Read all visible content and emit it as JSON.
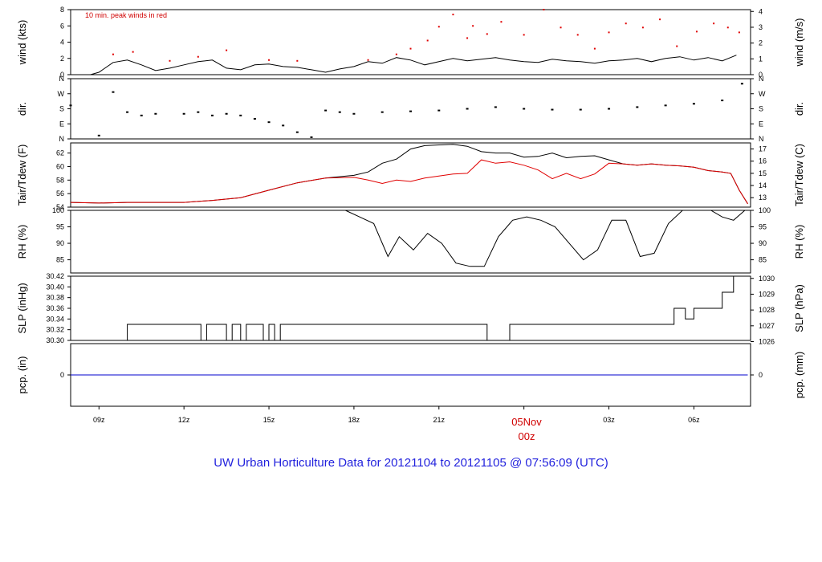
{
  "footer_title": "UW Urban Horticulture Data for 20121104  to  20121105 @ 07:56:09  (UTC)",
  "date_marker": {
    "date": "05Nov",
    "time": "00z",
    "color": "#d00000"
  },
  "x_ticks": [
    "09z",
    "12z",
    "15z",
    "18z",
    "21z",
    "00z",
    "03z",
    "06z"
  ],
  "colors": {
    "line": "#000000",
    "dewpoint": "#e00000",
    "gusts": "#e00000",
    "precip": "#0000cc",
    "footer": "#2222dd"
  },
  "chart_data": [
    {
      "type": "line",
      "name": "wind",
      "ylabel_left": "wind (kts)",
      "ylabel_right": "wind (m/s)",
      "annotation": "10 min. peak winds in red",
      "ylim": [
        0,
        8
      ],
      "yticks_left": [
        "0",
        "2",
        "4",
        "6",
        "8"
      ],
      "yticks_right": [
        "0",
        "1",
        "2",
        "3",
        "4"
      ],
      "x_hours": [
        0,
        0.7,
        1,
        1.5,
        2,
        2.5,
        3,
        3.5,
        4,
        4.5,
        5,
        5.5,
        6,
        6.5,
        7,
        7.5,
        8,
        8.5,
        9,
        9.5,
        10,
        10.5,
        11,
        11.5,
        12,
        12.5,
        13,
        13.5,
        14,
        14.5,
        15,
        15.5,
        16,
        16.5,
        17,
        17.5,
        18,
        18.5,
        19,
        19.5,
        20,
        20.5,
        21,
        21.5,
        22,
        22.5,
        23,
        23.5
      ],
      "mean_wind": [
        0,
        0,
        0.3,
        1.5,
        1.8,
        1.2,
        0.5,
        0.8,
        1.2,
        1.6,
        1.8,
        0.8,
        0.6,
        1.2,
        1.3,
        1.0,
        0.9,
        0.6,
        0.3,
        0.7,
        1.0,
        1.6,
        1.4,
        2.1,
        1.8,
        1.2,
        1.6,
        2.0,
        1.7,
        1.9,
        2.1,
        1.8,
        1.6,
        1.5,
        1.9,
        1.7,
        1.6,
        1.4,
        1.7,
        1.8,
        2.0,
        1.6,
        2.0,
        2.2,
        1.8,
        2.1,
        1.7,
        2.4
      ],
      "peak_x_hours": [
        1.5,
        2.2,
        3.5,
        4.5,
        5.5,
        7,
        8,
        10.5,
        11.5,
        12,
        12.6,
        13,
        13.5,
        14,
        14.2,
        14.7,
        15.2,
        16,
        16.7,
        17.3,
        17.9,
        18.5,
        19,
        19.6,
        20.2,
        20.8,
        21.4,
        22.1,
        22.7,
        23.2,
        23.6
      ],
      "peak_wind": [
        2.5,
        2.8,
        1.7,
        2.2,
        3.0,
        1.8,
        1.7,
        1.8,
        2.5,
        3.2,
        4.2,
        5.9,
        7.4,
        4.5,
        6.0,
        5.0,
        6.5,
        4.9,
        8.0,
        5.8,
        4.9,
        3.2,
        5.2,
        6.3,
        5.8,
        6.8,
        3.5,
        5.3,
        6.3,
        5.8,
        5.2
      ]
    },
    {
      "type": "scatter",
      "name": "direction",
      "ylabel_left": "dir.",
      "ylabel_right": "dir.",
      "yticks_left": [
        "N",
        "E",
        "S",
        "W",
        "N"
      ],
      "yticks_right": [
        "N",
        "E",
        "S",
        "W",
        "N"
      ],
      "ylim": [
        0,
        360
      ],
      "x_hours": [
        0,
        1,
        1.5,
        2,
        2.5,
        3,
        4,
        4.5,
        5,
        5.5,
        6,
        6.5,
        7,
        7.5,
        8,
        8.5,
        9,
        9.5,
        10,
        11,
        12,
        13,
        14,
        15,
        16,
        17,
        18,
        19,
        20,
        21,
        22,
        23,
        23.7
      ],
      "deg": [
        200,
        20,
        280,
        160,
        140,
        150,
        150,
        160,
        140,
        150,
        140,
        120,
        100,
        80,
        40,
        10,
        170,
        160,
        150,
        160,
        165,
        170,
        180,
        190,
        180,
        175,
        175,
        180,
        190,
        200,
        210,
        230,
        330
      ]
    },
    {
      "type": "line",
      "name": "temperature",
      "ylabel_left": "Tair/Tdew (F)",
      "ylabel_right": "Tair/Tdew (C)",
      "ylim": [
        54,
        63.5
      ],
      "yticks_left": [
        "54",
        "56",
        "58",
        "60",
        "62"
      ],
      "yticks_right": [
        "13",
        "14",
        "15",
        "16",
        "17"
      ],
      "x_hours": [
        0,
        1,
        2,
        3,
        4,
        5,
        6,
        7,
        8,
        9,
        10,
        10.5,
        11,
        11.5,
        12,
        12.5,
        13,
        13.5,
        14,
        14.5,
        15,
        15.5,
        16,
        16.5,
        17,
        17.5,
        18,
        18.5,
        19,
        19.5,
        20,
        20.5,
        21,
        21.5,
        22,
        22.5,
        23,
        23.3,
        23.6,
        23.9
      ],
      "tair": [
        54.7,
        54.6,
        54.7,
        54.7,
        54.7,
        55.0,
        55.4,
        56.5,
        57.6,
        58.3,
        58.7,
        59.2,
        60.5,
        61.1,
        62.6,
        63.1,
        63.2,
        63.3,
        63.0,
        62.2,
        62.0,
        62.0,
        61.4,
        61.5,
        62.0,
        61.3,
        61.5,
        61.6,
        61.0,
        60.4,
        60.2,
        60.4,
        60.2,
        60.1,
        59.9,
        59.4,
        59.2,
        59.0,
        56.5,
        54.5
      ],
      "tdew": [
        54.7,
        54.6,
        54.7,
        54.7,
        54.7,
        55.0,
        55.4,
        56.5,
        57.6,
        58.3,
        58.4,
        58.0,
        57.5,
        58.0,
        57.8,
        58.3,
        58.6,
        58.9,
        59.0,
        61.0,
        60.5,
        60.7,
        60.2,
        59.5,
        58.2,
        59.0,
        58.2,
        58.9,
        60.5,
        60.4,
        60.2,
        60.4,
        60.2,
        60.1,
        59.9,
        59.4,
        59.2,
        59.0,
        56.5,
        54.5
      ]
    },
    {
      "type": "line",
      "name": "relative_humidity",
      "ylabel_left": "RH (%)",
      "ylabel_right": "RH (%)",
      "ylim": [
        81,
        100
      ],
      "yticks_left": [
        "85",
        "90",
        "95",
        "100"
      ],
      "yticks_right": [
        "85",
        "90",
        "95",
        "100"
      ],
      "x_hours": [
        9.7,
        10.2,
        10.7,
        11.2,
        11.6,
        12.1,
        12.6,
        13.1,
        13.6,
        14.1,
        14.6,
        15.1,
        15.6,
        16.1,
        16.6,
        17.1,
        17.6,
        18.1,
        18.6,
        19.1,
        19.6,
        20.1,
        20.6,
        21.1,
        21.6,
        22.1,
        22.6,
        23.0,
        23.4,
        23.8
      ],
      "rh": [
        100,
        98,
        96,
        86,
        92,
        88,
        93,
        90,
        84,
        83,
        83,
        92,
        97,
        98,
        97,
        95,
        90,
        85,
        88,
        97,
        97,
        86,
        87,
        96,
        100,
        100,
        100,
        98,
        97,
        100
      ]
    },
    {
      "type": "line",
      "name": "sea_level_pressure",
      "ylabel_left": "SLP (inHg)",
      "ylabel_right": "SLP (hPa)",
      "ylim": [
        30.3,
        30.42
      ],
      "yticks_left": [
        "30.30",
        "30.32",
        "30.34",
        "30.36",
        "30.38",
        "30.40",
        "30.42"
      ],
      "yticks_right": [
        "1026",
        "1027",
        "1028",
        "1029",
        "1030"
      ],
      "x_hours": [
        0,
        1.8,
        2.0,
        4.6,
        4.8,
        5.5,
        5.7,
        6.0,
        6.2,
        6.8,
        7.0,
        7.2,
        7.4,
        14.6,
        14.7,
        15.5,
        20.7,
        21.3,
        21.7,
        22.0,
        23.0,
        23.4
      ],
      "slp": [
        30.3,
        30.3,
        30.33,
        30.3,
        30.33,
        30.3,
        30.33,
        30.3,
        30.33,
        30.3,
        30.33,
        30.3,
        30.33,
        30.33,
        30.3,
        30.33,
        30.33,
        30.36,
        30.34,
        30.36,
        30.39,
        30.42
      ]
    },
    {
      "type": "line",
      "name": "precipitation",
      "ylabel_left": "pcp. (in)",
      "ylabel_right": "pcp. (mm)",
      "yticks_left": [
        "0"
      ],
      "yticks_right": [
        "0"
      ],
      "ylim": [
        -0.05,
        0.05
      ],
      "x_hours": [
        0,
        23.9
      ],
      "pcp": [
        0,
        0
      ]
    }
  ]
}
